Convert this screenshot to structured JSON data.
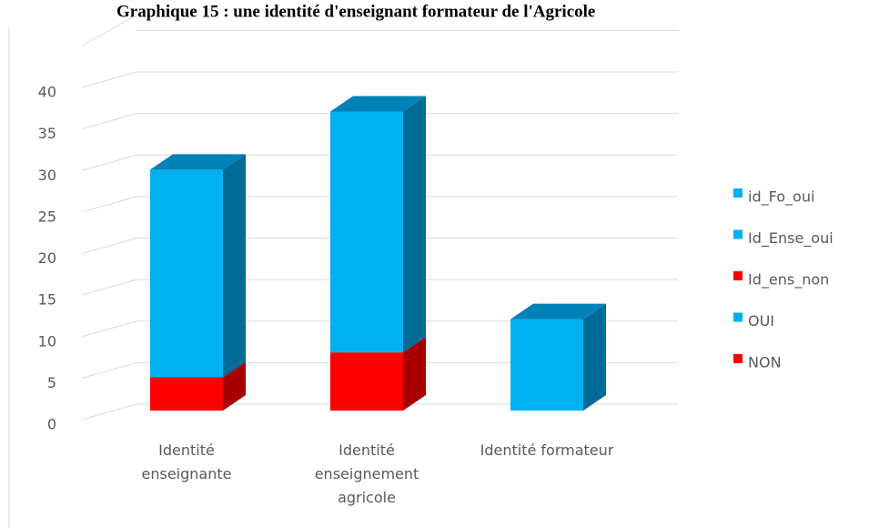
{
  "chart_data": {
    "type": "bar3d_stacked",
    "title": "Graphique 15 : une identité d'enseignant formateur de l'Agricole",
    "categories": [
      "Identité enseignante",
      "Identité enseignement agricole",
      "Identité formateur"
    ],
    "series": [
      {
        "name": "NON",
        "color": "#ff0000",
        "values": [
          4,
          null,
          null
        ]
      },
      {
        "name": "OUI",
        "color": "#00b0f0",
        "values": [
          25,
          null,
          null
        ]
      },
      {
        "name": "Id_ens_non",
        "color": "#ff0000",
        "values": [
          null,
          7,
          null
        ]
      },
      {
        "name": "Id_Ense_oui",
        "color": "#00b0f0",
        "values": [
          null,
          29,
          null
        ]
      },
      {
        "name": "id_Fo_oui",
        "color": "#00b0f0",
        "values": [
          null,
          null,
          11
        ]
      }
    ],
    "ylim": [
      0,
      45
    ],
    "yticks": [
      0,
      5,
      10,
      15,
      20,
      25,
      30,
      35,
      40
    ],
    "grid": true,
    "legend": "right"
  }
}
